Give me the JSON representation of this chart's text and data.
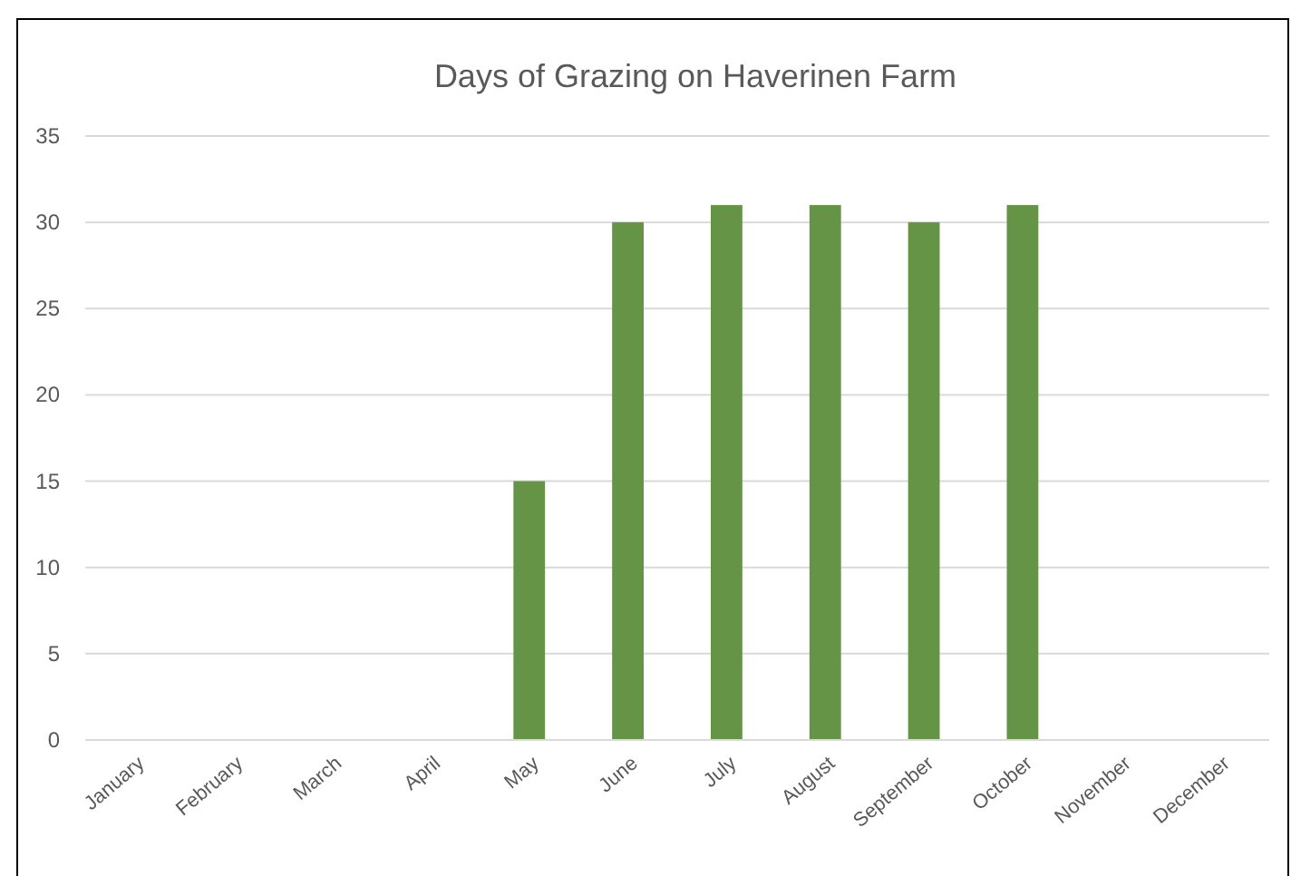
{
  "chart_data": {
    "type": "bar",
    "title": "Days of Grazing on Haverinen Farm",
    "categories": [
      "January",
      "February",
      "March",
      "April",
      "May",
      "June",
      "July",
      "August",
      "September",
      "October",
      "November",
      "December"
    ],
    "values": [
      0,
      0,
      0,
      0,
      15,
      30,
      31,
      31,
      30,
      31,
      0,
      0
    ],
    "color": "#659447",
    "ylim": [
      0,
      35
    ],
    "yticks": [
      0,
      5,
      10,
      15,
      20,
      25,
      30,
      35
    ],
    "grid": "y"
  }
}
